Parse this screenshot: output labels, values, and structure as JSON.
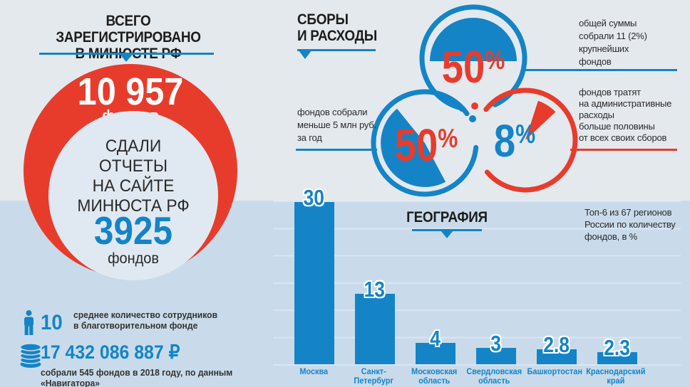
{
  "colors": {
    "blue": "#1484c7",
    "red": "#e73c2c",
    "background_top": "#e4e9ee",
    "background_bottom": "#c9dbea",
    "gridline": "#d9e6f2",
    "dark_text": "#2b2b2b",
    "white": "#ffffff"
  },
  "left_panel": {
    "title": "ВСЕГО ЗАРЕГИСТРИРОВАНО\nВ МИНЮСТЕ РФ",
    "total_value": "10 957",
    "total_unit": "фондов",
    "inner_text": "СДАЛИ\nОТЧЕТЫ\nНА САЙТЕ\nМИНЮСТА РФ",
    "reported_value": "3925",
    "reported_unit": "фондов"
  },
  "stats": {
    "employees_value": "10",
    "employees_label": "среднее количество сотрудников\nв благотворительном фонде",
    "money_value": "17 432 086 887 ₽",
    "money_label": "собрали 545 фондов в 2018 году, по данным «Навигатора»"
  },
  "fees_section": {
    "title": "СБОРЫ\nИ РАСХОДЫ",
    "pies": [
      {
        "value": "50",
        "unit": "%",
        "note": "общей суммы\nсобрали 11 (2%)\nкрупнейших\nфондов"
      },
      {
        "value": "50",
        "unit": "%",
        "note": "фондов собрали\nменьше 5 млн руб.\nза год"
      },
      {
        "value": "8",
        "unit": "%",
        "note": "фондов тратят\nна административные\nрасходы\nбольше половины\nот всех своих сборов"
      }
    ]
  },
  "chart_data": [
    {
      "type": "bar",
      "title": "ГЕОГРАФИЯ",
      "note": "Топ-6 из 67 регионов\nРоссии по количеству\nфондов, в %",
      "categories": [
        "Москва",
        "Санкт-Петербург",
        "Московская\nобласть",
        "Свердловская\nобласть",
        "Башкортостан",
        "Краснодарский\nкрай"
      ],
      "values": [
        30,
        13,
        4,
        3,
        2.8,
        2.3
      ],
      "value_labels": [
        "30",
        "13",
        "4",
        "3",
        "2.8",
        "2.3"
      ],
      "xlabel": "",
      "ylabel": "",
      "ylim": [
        0,
        30
      ],
      "grid": true,
      "gridline_step": 5
    },
    {
      "type": "pie",
      "label": "общей суммы собрали 11 (2%) крупнейших фондов",
      "value": 50,
      "unit": "%"
    },
    {
      "type": "pie",
      "label": "фондов собрали меньше 5 млн руб. за год",
      "value": 50,
      "unit": "%"
    },
    {
      "type": "pie",
      "label": "фондов тратят на административные расходы больше половины от всех своих сборов",
      "value": 8,
      "unit": "%"
    }
  ]
}
